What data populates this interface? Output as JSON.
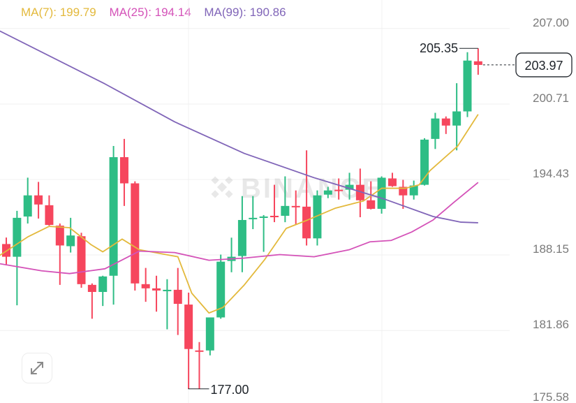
{
  "chart_data": {
    "type": "candlestick",
    "legend": [
      {
        "label": "MA(7): 199.79",
        "color": "#e3b93c"
      },
      {
        "label": "MA(25): 194.14",
        "color": "#d452b8"
      },
      {
        "label": "MA(99): 190.86",
        "color": "#8065b8"
      }
    ],
    "y_ticks": [
      "207.00",
      "200.71",
      "194.43",
      "188.15",
      "181.86",
      "175.58"
    ],
    "y_tick_values": [
      207.0,
      200.71,
      194.43,
      188.15,
      181.86,
      175.58
    ],
    "ylim": [
      175.58,
      207.0
    ],
    "grid": true,
    "watermark": "BINANCE",
    "high_label": "205.35",
    "low_label": "177.00",
    "last_price_label": "203.97",
    "last_price": 203.97,
    "colors": {
      "up": "#2ebd85",
      "down": "#f6465d"
    },
    "candles": [
      [
        189.06,
        189.6,
        187.3,
        188.0
      ],
      [
        188.0,
        191.82,
        183.96,
        191.24
      ],
      [
        191.35,
        194.58,
        190.77,
        193.11
      ],
      [
        193.11,
        194.23,
        191.18,
        192.35
      ],
      [
        192.29,
        193.11,
        190.59,
        190.65
      ],
      [
        190.59,
        190.77,
        185.66,
        188.94
      ],
      [
        188.88,
        191.24,
        188.35,
        189.77
      ],
      [
        189.71,
        190.0,
        185.42,
        185.72
      ],
      [
        185.66,
        185.78,
        182.84,
        185.07
      ],
      [
        185.07,
        186.42,
        183.9,
        186.36
      ],
      [
        186.42,
        197.22,
        184.02,
        196.29
      ],
      [
        196.29,
        197.81,
        192.23,
        194.11
      ],
      [
        194.11,
        194.28,
        185.19,
        185.78
      ],
      [
        185.72,
        187.07,
        184.25,
        185.37
      ],
      [
        185.37,
        186.42,
        183.43,
        185.19
      ],
      [
        185.13,
        186.13,
        181.96,
        185.25
      ],
      [
        185.25,
        187.07,
        181.49,
        184.08
      ],
      [
        184.02,
        185.01,
        177.0,
        180.32
      ],
      [
        180.2,
        180.9,
        177.02,
        180.15
      ],
      [
        180.2,
        182.95,
        179.79,
        182.95
      ],
      [
        182.95,
        188.18,
        182.84,
        187.59
      ],
      [
        187.65,
        189.59,
        186.71,
        188.0
      ],
      [
        188.06,
        193.05,
        186.71,
        191.06
      ],
      [
        191.18,
        193.05,
        190.3,
        191.24
      ],
      [
        191.29,
        191.47,
        188.41,
        191.35
      ],
      [
        191.41,
        193.99,
        190.88,
        191.29
      ],
      [
        191.41,
        194.69,
        190.88,
        192.23
      ],
      [
        192.23,
        193.52,
        190.65,
        192.12
      ],
      [
        192.17,
        196.86,
        188.94,
        189.53
      ],
      [
        189.53,
        193.52,
        188.94,
        193.11
      ],
      [
        193.17,
        193.82,
        192.88,
        193.52
      ],
      [
        193.58,
        194.52,
        192.76,
        193.52
      ],
      [
        193.58,
        194.99,
        192.76,
        193.99
      ],
      [
        193.99,
        195.34,
        191.29,
        192.7
      ],
      [
        192.7,
        194.28,
        191.94,
        191.99
      ],
      [
        191.99,
        194.69,
        191.59,
        194.58
      ],
      [
        194.52,
        194.99,
        193.82,
        193.88
      ],
      [
        193.82,
        194.4,
        191.99,
        193.11
      ],
      [
        193.11,
        194.34,
        192.76,
        193.93
      ],
      [
        193.99,
        197.87,
        193.93,
        197.75
      ],
      [
        197.81,
        199.98,
        196.97,
        199.51
      ],
      [
        199.51,
        199.68,
        198.22,
        198.92
      ],
      [
        198.92,
        202.45,
        196.86,
        200.1
      ],
      [
        200.1,
        205.03,
        199.63,
        204.33
      ],
      [
        204.27,
        205.35,
        203.15,
        203.97
      ]
    ],
    "ma_lines": [
      {
        "name": "MA(7)",
        "color": "#e3b93c",
        "points": [
          [
            -0.6,
            188.12
          ],
          [
            2.0,
            189.65
          ],
          [
            4.0,
            190.53
          ],
          [
            5.9,
            190.42
          ],
          [
            7.9,
            189.01
          ],
          [
            9.0,
            188.41
          ],
          [
            10.8,
            189.47
          ],
          [
            12.4,
            188.59
          ],
          [
            16.0,
            188.0
          ],
          [
            17.3,
            184.96
          ],
          [
            18.9,
            183.32
          ],
          [
            20.2,
            183.78
          ],
          [
            22.2,
            185.66
          ],
          [
            24.1,
            187.77
          ],
          [
            26.1,
            190.36
          ],
          [
            28.1,
            191.06
          ],
          [
            30.7,
            192.05
          ],
          [
            33.3,
            192.64
          ],
          [
            35.0,
            193.7
          ],
          [
            37.2,
            193.7
          ],
          [
            38.5,
            193.99
          ],
          [
            39.5,
            195.16
          ],
          [
            42.1,
            197.22
          ],
          [
            44,
            199.85
          ]
        ]
      },
      {
        "name": "MA(25)",
        "color": "#d452b8",
        "points": [
          [
            -0.6,
            187.42
          ],
          [
            3.3,
            186.83
          ],
          [
            5.9,
            186.6
          ],
          [
            9.2,
            187.0
          ],
          [
            12.4,
            188.47
          ],
          [
            15.7,
            188.35
          ],
          [
            18.9,
            187.71
          ],
          [
            22.2,
            187.89
          ],
          [
            25.5,
            188.18
          ],
          [
            28.7,
            188.0
          ],
          [
            32.0,
            188.59
          ],
          [
            33.9,
            189.24
          ],
          [
            35.9,
            189.36
          ],
          [
            37.8,
            190.06
          ],
          [
            39.8,
            191.06
          ],
          [
            41.7,
            192.5
          ],
          [
            44,
            194.19
          ]
        ]
      },
      {
        "name": "MA(99)",
        "color": "#8065b8",
        "points": [
          [
            -0.6,
            206.79
          ],
          [
            9.2,
            202.39
          ],
          [
            15.7,
            199.23
          ],
          [
            22.2,
            196.6
          ],
          [
            28.7,
            194.58
          ],
          [
            35.2,
            192.82
          ],
          [
            39.8,
            191.35
          ],
          [
            42.4,
            190.88
          ],
          [
            44,
            190.83
          ]
        ]
      }
    ]
  },
  "controls": {
    "expand_icon": "expand-arrows-icon"
  }
}
